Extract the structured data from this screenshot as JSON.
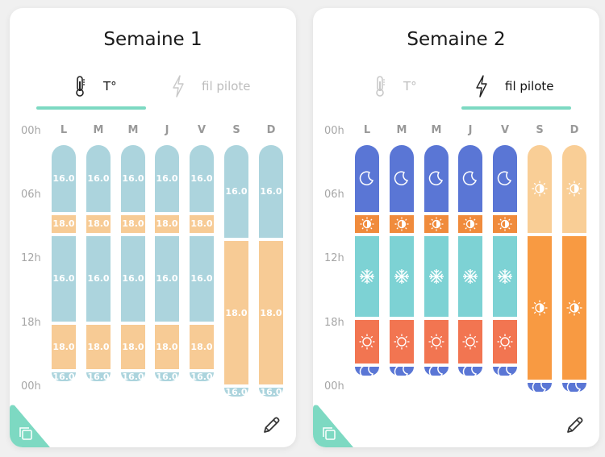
{
  "colors": {
    "t16": "#acd4dd",
    "t18": "#f7cb95",
    "night": "#5a76d5",
    "eco": "#f08b3c",
    "frost": "#7dd2d4",
    "comfort": "#f27551",
    "comfortAlt": "#f9ce96",
    "comfortOrange": "#f89a42",
    "accent": "#7dd9c2"
  },
  "hours": [
    "00h",
    "06h",
    "12h",
    "18h",
    "00h"
  ],
  "days": [
    "L",
    "M",
    "M",
    "J",
    "V",
    "S",
    "D"
  ],
  "weeks": [
    {
      "title": "Semaine 1",
      "tabs": {
        "temp": "T°",
        "pilot": "fil pilote"
      },
      "active": "temp",
      "schedule": [
        [
          {
            "h": 6.5,
            "v": "16.0",
            "c": "t16"
          },
          {
            "h": 2,
            "v": "18.0",
            "c": "t18"
          },
          {
            "h": 8.5,
            "v": "16.0",
            "c": "t16"
          },
          {
            "h": 4.5,
            "v": "18.0",
            "c": "t18"
          },
          {
            "h": 1,
            "v": "16.0",
            "c": "t16"
          }
        ],
        [
          {
            "h": 6.5,
            "v": "16.0",
            "c": "t16"
          },
          {
            "h": 2,
            "v": "18.0",
            "c": "t18"
          },
          {
            "h": 8.5,
            "v": "16.0",
            "c": "t16"
          },
          {
            "h": 4.5,
            "v": "18.0",
            "c": "t18"
          },
          {
            "h": 1,
            "v": "16.0",
            "c": "t16"
          }
        ],
        [
          {
            "h": 6.5,
            "v": "16.0",
            "c": "t16"
          },
          {
            "h": 2,
            "v": "18.0",
            "c": "t18"
          },
          {
            "h": 8.5,
            "v": "16.0",
            "c": "t16"
          },
          {
            "h": 4.5,
            "v": "18.0",
            "c": "t18"
          },
          {
            "h": 1,
            "v": "16.0",
            "c": "t16"
          }
        ],
        [
          {
            "h": 6.5,
            "v": "16.0",
            "c": "t16"
          },
          {
            "h": 2,
            "v": "18.0",
            "c": "t18"
          },
          {
            "h": 8.5,
            "v": "16.0",
            "c": "t16"
          },
          {
            "h": 4.5,
            "v": "18.0",
            "c": "t18"
          },
          {
            "h": 1,
            "v": "16.0",
            "c": "t16"
          }
        ],
        [
          {
            "h": 6.5,
            "v": "16.0",
            "c": "t16"
          },
          {
            "h": 2,
            "v": "18.0",
            "c": "t18"
          },
          {
            "h": 8.5,
            "v": "16.0",
            "c": "t16"
          },
          {
            "h": 4.5,
            "v": "18.0",
            "c": "t18"
          },
          {
            "h": 1,
            "v": "16.0",
            "c": "t16"
          }
        ],
        [
          {
            "h": 9,
            "v": "16.0",
            "c": "t16"
          },
          {
            "h": 14,
            "v": "18.0",
            "c": "t18"
          },
          {
            "h": 1,
            "v": "16.0",
            "c": "t16"
          }
        ],
        [
          {
            "h": 9,
            "v": "16.0",
            "c": "t16"
          },
          {
            "h": 14,
            "v": "18.0",
            "c": "t18"
          },
          {
            "h": 1,
            "v": "16.0",
            "c": "t16"
          }
        ]
      ]
    },
    {
      "title": "Semaine 2",
      "tabs": {
        "temp": "T°",
        "pilot": "fil pilote"
      },
      "active": "pilot",
      "schedule": [
        [
          {
            "h": 6.5,
            "i": "moon",
            "c": "night"
          },
          {
            "h": 2,
            "i": "eco",
            "c": "eco"
          },
          {
            "h": 8,
            "i": "snow",
            "c": "frost"
          },
          {
            "h": 4.5,
            "i": "sun",
            "c": "comfort"
          },
          {
            "h": 1,
            "i": "moon",
            "c": "night"
          }
        ],
        [
          {
            "h": 6.5,
            "i": "moon",
            "c": "night"
          },
          {
            "h": 2,
            "i": "eco",
            "c": "eco"
          },
          {
            "h": 8,
            "i": "snow",
            "c": "frost"
          },
          {
            "h": 4.5,
            "i": "sun",
            "c": "comfort"
          },
          {
            "h": 1,
            "i": "moon",
            "c": "night"
          }
        ],
        [
          {
            "h": 6.5,
            "i": "moon",
            "c": "night"
          },
          {
            "h": 2,
            "i": "eco",
            "c": "eco"
          },
          {
            "h": 8,
            "i": "snow",
            "c": "frost"
          },
          {
            "h": 4.5,
            "i": "sun",
            "c": "comfort"
          },
          {
            "h": 1,
            "i": "moon",
            "c": "night"
          }
        ],
        [
          {
            "h": 6.5,
            "i": "moon",
            "c": "night"
          },
          {
            "h": 2,
            "i": "eco",
            "c": "eco"
          },
          {
            "h": 8,
            "i": "snow",
            "c": "frost"
          },
          {
            "h": 4.5,
            "i": "sun",
            "c": "comfort"
          },
          {
            "h": 1,
            "i": "moon",
            "c": "night"
          }
        ],
        [
          {
            "h": 6.5,
            "i": "moon",
            "c": "night"
          },
          {
            "h": 2,
            "i": "eco",
            "c": "eco"
          },
          {
            "h": 8,
            "i": "snow",
            "c": "frost"
          },
          {
            "h": 4.5,
            "i": "sun",
            "c": "comfort"
          },
          {
            "h": 1,
            "i": "moon",
            "c": "night"
          }
        ],
        [
          {
            "h": 8.5,
            "i": "sunlight",
            "c": "comfortAlt"
          },
          {
            "h": 14,
            "i": "sunlight",
            "c": "comfortOrange"
          },
          {
            "h": 1,
            "i": "moon",
            "c": "night"
          }
        ],
        [
          {
            "h": 8.5,
            "i": "sunlight",
            "c": "comfortAlt"
          },
          {
            "h": 14,
            "i": "sunlight",
            "c": "comfortOrange"
          },
          {
            "h": 1,
            "i": "moon",
            "c": "night"
          }
        ]
      ]
    }
  ],
  "icons": {
    "thermometer": "thermometer-icon",
    "bolt": "bolt-icon",
    "copy": "copy-icon",
    "edit": "pencil-icon",
    "moon": "moon-icon",
    "sun": "sun-icon",
    "eco": "half-sun-icon",
    "snow": "snowflake-icon"
  }
}
